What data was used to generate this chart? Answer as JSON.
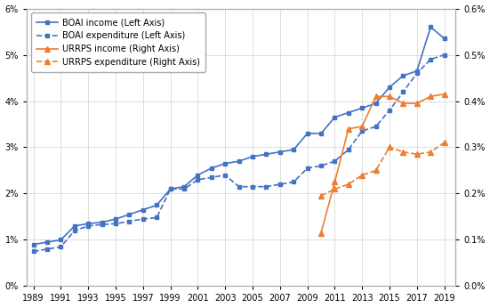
{
  "boai_income_x": [
    1989,
    1990,
    1991,
    1992,
    1993,
    1994,
    1995,
    1996,
    1997,
    1998,
    1999,
    2000,
    2001,
    2002,
    2003,
    2004,
    2005,
    2006,
    2007,
    2008,
    2009,
    2010,
    2011,
    2012,
    2013,
    2014,
    2015,
    2016,
    2017,
    2018,
    2019
  ],
  "boai_income_y": [
    0.009,
    0.0095,
    0.01,
    0.013,
    0.0135,
    0.0138,
    0.0145,
    0.0155,
    0.0165,
    0.0175,
    0.021,
    0.0215,
    0.024,
    0.0255,
    0.0265,
    0.027,
    0.028,
    0.0285,
    0.029,
    0.0295,
    0.033,
    0.033,
    0.0365,
    0.0375,
    0.0385,
    0.0395,
    0.043,
    0.0455,
    0.0465,
    0.056,
    0.0535
  ],
  "boai_expenditure_x": [
    1989,
    1990,
    1991,
    1992,
    1993,
    1994,
    1995,
    1996,
    1997,
    1998,
    1999,
    2000,
    2001,
    2002,
    2003,
    2004,
    2005,
    2006,
    2007,
    2008,
    2009,
    2010,
    2011,
    2012,
    2013,
    2014,
    2015,
    2016,
    2017,
    2018,
    2019
  ],
  "boai_expenditure_y": [
    0.0075,
    0.008,
    0.0085,
    0.012,
    0.013,
    0.0133,
    0.0135,
    0.014,
    0.0145,
    0.0148,
    0.021,
    0.021,
    0.023,
    0.0235,
    0.024,
    0.0215,
    0.0215,
    0.0215,
    0.022,
    0.0225,
    0.0255,
    0.026,
    0.027,
    0.0295,
    0.0335,
    0.0345,
    0.038,
    0.042,
    0.046,
    0.049,
    0.05
  ],
  "urrps_income_x": [
    2010,
    2011,
    2012,
    2013,
    2014,
    2015,
    2016,
    2017,
    2018,
    2019
  ],
  "urrps_income_y": [
    0.00115,
    0.00225,
    0.0034,
    0.00345,
    0.0041,
    0.0041,
    0.00395,
    0.00395,
    0.0041,
    0.00415
  ],
  "urrps_expenditure_x": [
    2010,
    2011,
    2012,
    2013,
    2014,
    2015,
    2016,
    2017,
    2018,
    2019
  ],
  "urrps_expenditure_y": [
    0.00195,
    0.0021,
    0.0022,
    0.0024,
    0.0025,
    0.003,
    0.0029,
    0.00285,
    0.0029,
    0.0031
  ],
  "boai_color": "#4472C4",
  "urrps_color": "#ED7D31",
  "left_ylim": [
    0,
    0.06
  ],
  "right_ylim": [
    0,
    0.006
  ],
  "left_yticks": [
    0.0,
    0.01,
    0.02,
    0.03,
    0.04,
    0.05,
    0.06
  ],
  "right_yticks": [
    0.0,
    0.001,
    0.002,
    0.003,
    0.004,
    0.005,
    0.006
  ],
  "xticks": [
    1989,
    1991,
    1993,
    1995,
    1997,
    1999,
    2001,
    2003,
    2005,
    2007,
    2009,
    2011,
    2013,
    2015,
    2017,
    2019
  ],
  "legend_labels": [
    "BOAI income (Left Axis)",
    "BOAI expenditure (Left Axis)",
    "URRPS income (Right Axis)",
    "URRPS expenditure (Right Axis)"
  ]
}
